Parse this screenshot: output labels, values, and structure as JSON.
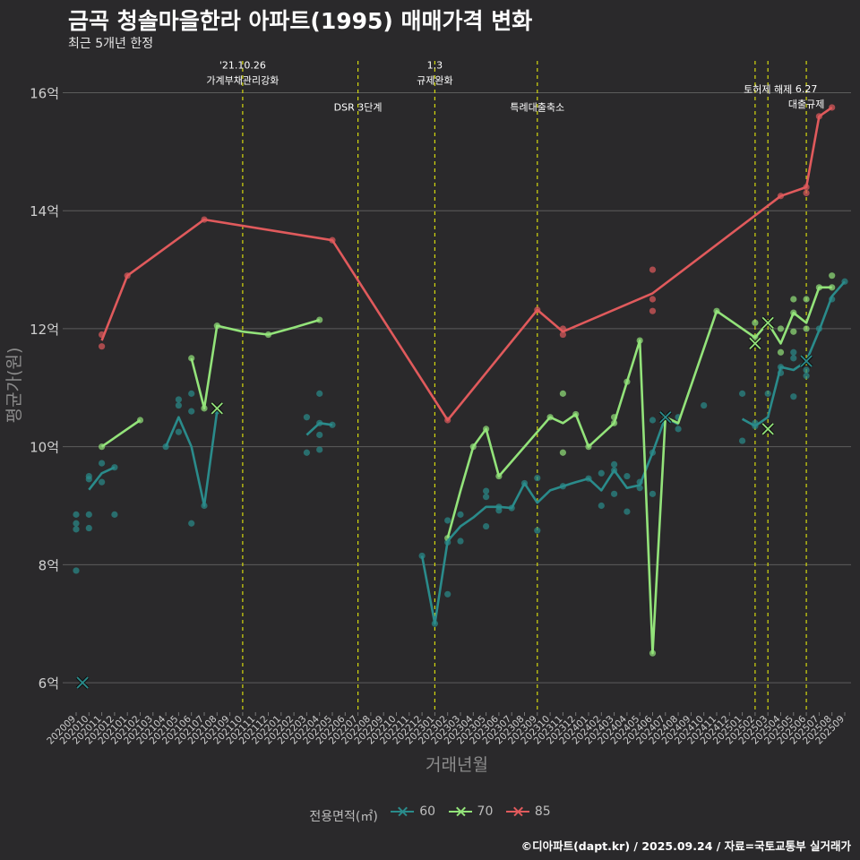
{
  "title": "금곡 청솔마을한라 아파트(1995) 매매가격 변화",
  "subtitle": "최근 5개년 한정",
  "caption": "©디아파트(dapt.kr) / 2025.09.24 / 자료=국토교통부 실거래가",
  "colors": {
    "background": "#2a292b",
    "grid": "#5c5c5c",
    "event_line": "#d4d90e",
    "series_60": "#2a8b8b",
    "series_70": "#93e37a",
    "series_85": "#e05a5c"
  },
  "legend": {
    "title": "전용면적(㎡)",
    "items": [
      "60",
      "70",
      "85"
    ]
  },
  "chart_data": {
    "type": "line",
    "title": "금곡 청솔마을한라 아파트(1995) 매매가격 변화",
    "xlabel": "거래년월",
    "ylabel": "평균가(원)",
    "ylim": [
      5.5,
      16.6
    ],
    "yticks": [
      6,
      8,
      10,
      12,
      14,
      16
    ],
    "ytick_labels": [
      "6억",
      "8억",
      "10억",
      "12억",
      "14억",
      "16억"
    ],
    "grid": true,
    "legend_position": "bottom",
    "x_labels": [
      "202009",
      "202010",
      "202011",
      "202012",
      "202101",
      "202102",
      "202103",
      "202104",
      "202105",
      "202106",
      "202107",
      "202108",
      "202109",
      "202110",
      "202111",
      "202112",
      "202201",
      "202202",
      "202203",
      "202204",
      "202205",
      "202206",
      "202207",
      "202208",
      "202209",
      "202210",
      "202211",
      "202212",
      "202301",
      "202302",
      "202303",
      "202304",
      "202305",
      "202306",
      "202307",
      "202308",
      "202309",
      "202310",
      "202311",
      "202312",
      "202401",
      "202402",
      "202403",
      "202404",
      "202405",
      "202406",
      "202407",
      "202408",
      "202409",
      "202410",
      "202411",
      "202412",
      "202501",
      "202502",
      "202503",
      "202504",
      "202505",
      "202506",
      "202507",
      "202508",
      "202509"
    ],
    "events": [
      {
        "x": 13,
        "label": "'21.10.26\n가계부채관리강화",
        "y_label": 16.15
      },
      {
        "x": 22,
        "label": "DSR 3단계",
        "y_label": 15.7
      },
      {
        "x": 28,
        "label": "1.3\n규제완화",
        "y_label": 16.15
      },
      {
        "x": 36,
        "label": "특례대출축소",
        "y_label": 15.7
      },
      {
        "x": 53,
        "label": "",
        "y_label": 16.0
      },
      {
        "x": 54,
        "label": "토허제 해제",
        "y_label": 16.0
      },
      {
        "x": 57,
        "label": "6.27\n대출규제",
        "y_label": 15.75
      }
    ],
    "series": [
      {
        "name": "60",
        "line": [
          [
            1,
            9.27
          ],
          [
            2,
            9.55
          ],
          [
            3,
            9.65
          ],
          [
            null,
            null
          ],
          [
            7,
            10.0
          ],
          [
            8,
            10.5
          ],
          [
            9,
            10.0
          ],
          [
            10,
            9.0
          ],
          [
            11,
            10.6
          ],
          [
            null,
            null
          ],
          [
            18,
            10.2
          ],
          [
            19,
            10.4
          ],
          [
            20,
            10.37
          ],
          [
            null,
            null
          ],
          [
            27,
            8.15
          ],
          [
            28,
            7.0
          ],
          [
            29,
            8.4
          ],
          [
            30,
            8.65
          ],
          [
            31,
            8.8
          ],
          [
            32,
            8.98
          ],
          [
            33,
            8.98
          ],
          [
            34,
            8.96
          ],
          [
            35,
            9.38
          ],
          [
            36,
            9.05
          ],
          [
            37,
            9.26
          ],
          [
            38,
            9.33
          ],
          [
            39,
            9.4
          ],
          [
            40,
            9.46
          ],
          [
            41,
            9.26
          ],
          [
            42,
            9.6
          ],
          [
            43,
            9.3
          ],
          [
            44,
            9.35
          ],
          [
            45,
            9.9
          ],
          [
            46,
            10.5
          ],
          [
            47,
            10.38
          ],
          [
            null,
            null
          ],
          [
            52,
            10.47
          ],
          [
            53,
            10.35
          ],
          [
            54,
            10.5
          ],
          [
            55,
            11.35
          ],
          [
            56,
            11.3
          ],
          [
            57,
            11.45
          ],
          [
            58,
            11.97
          ],
          [
            59,
            12.55
          ],
          [
            60,
            12.8
          ]
        ],
        "points": [
          [
            0,
            8.85
          ],
          [
            0,
            8.7
          ],
          [
            0,
            8.6
          ],
          [
            0,
            7.9
          ],
          [
            1,
            9.5
          ],
          [
            1,
            9.45
          ],
          [
            1,
            8.85
          ],
          [
            1,
            8.62
          ],
          [
            2,
            9.72
          ],
          [
            2,
            9.4
          ],
          [
            3,
            9.65
          ],
          [
            3,
            8.85
          ],
          [
            7,
            10.0
          ],
          [
            8,
            10.8
          ],
          [
            8,
            10.7
          ],
          [
            8,
            10.25
          ],
          [
            9,
            10.9
          ],
          [
            9,
            10.6
          ],
          [
            9,
            8.7
          ],
          [
            10,
            9.0
          ],
          [
            11,
            10.6
          ],
          [
            18,
            10.5
          ],
          [
            18,
            9.9
          ],
          [
            19,
            10.9
          ],
          [
            19,
            10.4
          ],
          [
            19,
            10.2
          ],
          [
            19,
            9.95
          ],
          [
            20,
            10.37
          ],
          [
            27,
            8.15
          ],
          [
            28,
            7.0
          ],
          [
            29,
            8.75
          ],
          [
            29,
            8.38
          ],
          [
            29,
            7.5
          ],
          [
            30,
            8.85
          ],
          [
            30,
            8.4
          ],
          [
            32,
            9.25
          ],
          [
            32,
            9.15
          ],
          [
            32,
            8.65
          ],
          [
            33,
            8.98
          ],
          [
            33,
            8.92
          ],
          [
            34,
            8.96
          ],
          [
            35,
            9.38
          ],
          [
            36,
            9.47
          ],
          [
            36,
            8.58
          ],
          [
            38,
            9.33
          ],
          [
            40,
            9.46
          ],
          [
            41,
            9.55
          ],
          [
            41,
            9.0
          ],
          [
            42,
            9.7
          ],
          [
            42,
            9.6
          ],
          [
            42,
            9.2
          ],
          [
            43,
            9.5
          ],
          [
            43,
            8.9
          ],
          [
            44,
            9.4
          ],
          [
            44,
            9.3
          ],
          [
            45,
            9.9
          ],
          [
            45,
            9.2
          ],
          [
            45,
            10.45
          ],
          [
            47,
            10.5
          ],
          [
            47,
            10.3
          ],
          [
            49,
            10.7
          ],
          [
            52,
            10.9
          ],
          [
            52,
            10.1
          ],
          [
            53,
            10.4
          ],
          [
            53,
            10.35
          ],
          [
            54,
            10.9
          ],
          [
            55,
            11.35
          ],
          [
            55,
            11.25
          ],
          [
            56,
            11.6
          ],
          [
            56,
            11.5
          ],
          [
            56,
            10.85
          ],
          [
            57,
            11.3
          ],
          [
            57,
            11.2
          ],
          [
            58,
            12.0
          ],
          [
            59,
            12.5
          ],
          [
            60,
            12.8
          ]
        ],
        "crosses": [
          [
            0.5,
            6.0
          ],
          [
            46,
            10.5
          ],
          [
            57,
            11.45
          ]
        ]
      },
      {
        "name": "70",
        "line": [
          [
            2,
            10.0
          ],
          [
            5,
            10.45
          ],
          [
            null,
            null
          ],
          [
            9,
            11.5
          ],
          [
            10,
            10.65
          ],
          [
            11,
            12.05
          ],
          [
            13,
            11.95
          ],
          [
            15,
            11.9
          ],
          [
            17,
            12.02
          ],
          [
            19,
            12.15
          ],
          [
            null,
            null
          ],
          [
            29,
            8.45
          ],
          [
            30,
            9.25
          ],
          [
            31,
            10.0
          ],
          [
            32,
            10.3
          ],
          [
            33,
            9.5
          ],
          [
            37,
            10.5
          ],
          [
            38,
            10.4
          ],
          [
            39,
            10.55
          ],
          [
            40,
            10.0
          ],
          [
            42,
            10.4
          ],
          [
            43,
            11.1
          ],
          [
            44,
            11.8
          ],
          [
            45,
            6.5
          ],
          [
            46,
            10.5
          ],
          [
            47,
            10.4
          ],
          [
            50,
            12.3
          ],
          [
            53,
            11.85
          ],
          [
            54,
            12.1
          ],
          [
            55,
            11.75
          ],
          [
            56,
            12.27
          ],
          [
            57,
            12.1
          ],
          [
            58,
            12.7
          ],
          [
            59,
            12.7
          ]
        ],
        "points": [
          [
            2,
            10.0
          ],
          [
            5,
            10.45
          ],
          [
            9,
            11.5
          ],
          [
            10,
            10.65
          ],
          [
            11,
            12.05
          ],
          [
            15,
            11.9
          ],
          [
            19,
            12.15
          ],
          [
            29,
            8.45
          ],
          [
            31,
            10.0
          ],
          [
            32,
            10.3
          ],
          [
            33,
            9.5
          ],
          [
            37,
            10.5
          ],
          [
            38,
            10.9
          ],
          [
            38,
            9.9
          ],
          [
            39,
            10.55
          ],
          [
            40,
            10.0
          ],
          [
            42,
            10.5
          ],
          [
            42,
            10.4
          ],
          [
            43,
            11.1
          ],
          [
            44,
            11.8
          ],
          [
            45,
            6.5
          ],
          [
            46,
            10.5
          ],
          [
            50,
            12.3
          ],
          [
            53,
            12.1
          ],
          [
            53,
            11.85
          ],
          [
            54,
            12.1
          ],
          [
            55,
            12.0
          ],
          [
            55,
            11.6
          ],
          [
            56,
            12.5
          ],
          [
            56,
            12.27
          ],
          [
            56,
            11.95
          ],
          [
            57,
            12.5
          ],
          [
            57,
            12.0
          ],
          [
            58,
            12.7
          ],
          [
            59,
            12.9
          ],
          [
            59,
            12.7
          ]
        ],
        "crosses": [
          [
            11,
            10.65
          ],
          [
            53,
            11.75
          ],
          [
            54,
            12.1
          ],
          [
            54,
            10.3
          ]
        ]
      },
      {
        "name": "85",
        "line": [
          [
            2,
            11.8
          ],
          [
            4,
            12.9
          ],
          [
            10,
            13.85
          ],
          [
            20,
            13.5
          ],
          [
            29,
            10.45
          ],
          [
            36,
            12.32
          ],
          [
            38,
            11.95
          ],
          [
            45,
            12.6
          ],
          [
            55,
            14.25
          ],
          [
            57,
            14.4
          ],
          [
            58,
            15.6
          ],
          [
            59,
            15.75
          ]
        ],
        "points": [
          [
            2,
            11.9
          ],
          [
            2,
            11.7
          ],
          [
            4,
            12.9
          ],
          [
            10,
            13.85
          ],
          [
            20,
            13.5
          ],
          [
            29,
            10.45
          ],
          [
            36,
            12.32
          ],
          [
            38,
            12.0
          ],
          [
            38,
            11.9
          ],
          [
            45,
            13.0
          ],
          [
            45,
            12.5
          ],
          [
            45,
            12.3
          ],
          [
            55,
            14.25
          ],
          [
            57,
            14.4
          ],
          [
            57,
            14.3
          ],
          [
            58,
            15.6
          ],
          [
            59,
            15.75
          ]
        ],
        "crosses": []
      }
    ]
  }
}
